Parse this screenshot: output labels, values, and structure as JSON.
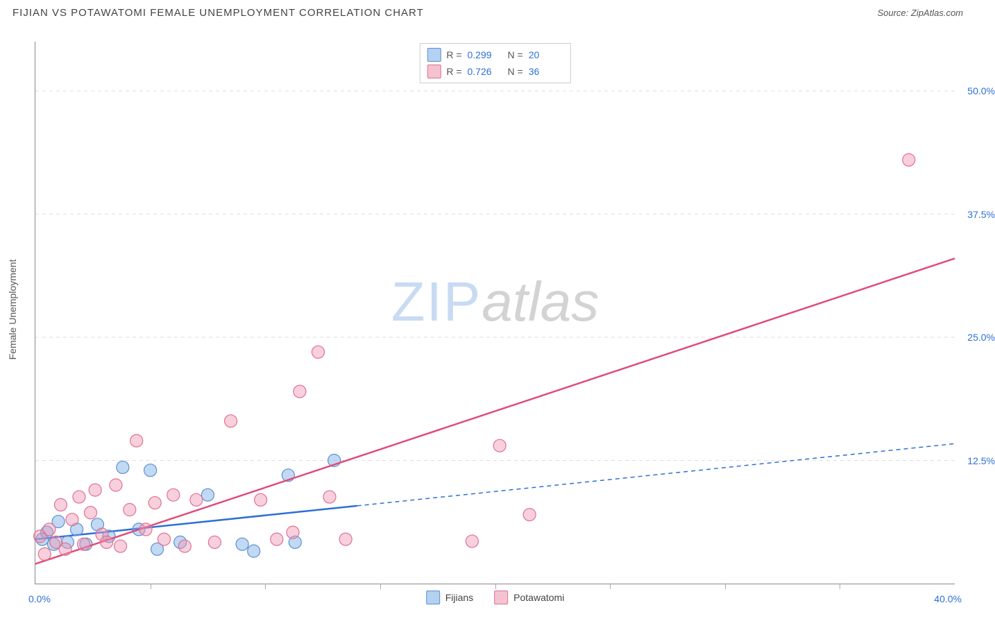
{
  "title": "FIJIAN VS POTAWATOMI FEMALE UNEMPLOYMENT CORRELATION CHART",
  "source_label": "Source: ZipAtlas.com",
  "y_axis_label": "Female Unemployment",
  "watermark": {
    "part1": "ZIP",
    "part2": "atlas"
  },
  "x_axis": {
    "min": 0,
    "max": 40,
    "min_label": "0.0%",
    "max_label": "40.0%",
    "tick_count": 8
  },
  "y_axis": {
    "min": 0,
    "max": 55,
    "gridlines": [
      12.5,
      25.0,
      37.5,
      50.0
    ],
    "grid_labels": [
      "12.5%",
      "25.0%",
      "37.5%",
      "50.0%"
    ]
  },
  "series": [
    {
      "name": "Fijians",
      "fill": "rgba(120,170,230,0.45)",
      "stroke": "#5a8fd0",
      "line_color": "#2c6fd6",
      "line_dash_after_x": 14,
      "R": "0.299",
      "N": "20",
      "regression": {
        "x1": 0,
        "y1": 4.5,
        "x2": 40,
        "y2": 14.2
      },
      "points": [
        [
          0.3,
          4.5
        ],
        [
          0.5,
          5.2
        ],
        [
          0.8,
          4.0
        ],
        [
          1.0,
          6.3
        ],
        [
          1.4,
          4.2
        ],
        [
          1.8,
          5.5
        ],
        [
          2.2,
          4.0
        ],
        [
          2.7,
          6.0
        ],
        [
          3.2,
          4.8
        ],
        [
          3.8,
          11.8
        ],
        [
          4.5,
          5.5
        ],
        [
          5.0,
          11.5
        ],
        [
          5.3,
          3.5
        ],
        [
          6.3,
          4.2
        ],
        [
          7.5,
          9.0
        ],
        [
          9.0,
          4.0
        ],
        [
          9.5,
          3.3
        ],
        [
          11.0,
          11.0
        ],
        [
          11.3,
          4.2
        ],
        [
          13.0,
          12.5
        ]
      ]
    },
    {
      "name": "Potawatomi",
      "fill": "rgba(240,150,180,0.45)",
      "stroke": "#e0708f",
      "line_color": "#e14b7a",
      "line_dash_after_x": 40,
      "R": "0.726",
      "N": "36",
      "regression": {
        "x1": 0,
        "y1": 2.0,
        "x2": 40,
        "y2": 33.0
      },
      "points": [
        [
          0.2,
          4.8
        ],
        [
          0.4,
          3.0
        ],
        [
          0.6,
          5.5
        ],
        [
          0.9,
          4.2
        ],
        [
          1.1,
          8.0
        ],
        [
          1.3,
          3.5
        ],
        [
          1.6,
          6.5
        ],
        [
          1.9,
          8.8
        ],
        [
          2.1,
          4.0
        ],
        [
          2.4,
          7.2
        ],
        [
          2.6,
          9.5
        ],
        [
          2.9,
          5.0
        ],
        [
          3.1,
          4.2
        ],
        [
          3.5,
          10.0
        ],
        [
          3.7,
          3.8
        ],
        [
          4.1,
          7.5
        ],
        [
          4.4,
          14.5
        ],
        [
          4.8,
          5.5
        ],
        [
          5.2,
          8.2
        ],
        [
          5.6,
          4.5
        ],
        [
          6.0,
          9.0
        ],
        [
          6.5,
          3.8
        ],
        [
          7.0,
          8.5
        ],
        [
          7.8,
          4.2
        ],
        [
          8.5,
          16.5
        ],
        [
          9.8,
          8.5
        ],
        [
          10.5,
          4.5
        ],
        [
          11.2,
          5.2
        ],
        [
          11.5,
          19.5
        ],
        [
          12.3,
          23.5
        ],
        [
          12.8,
          8.8
        ],
        [
          13.5,
          4.5
        ],
        [
          19.0,
          4.3
        ],
        [
          20.2,
          14.0
        ],
        [
          21.5,
          7.0
        ],
        [
          38.0,
          43.0
        ]
      ]
    }
  ],
  "marker_radius": 9,
  "marker_stroke_width": 1.2,
  "regression_line_width": 2.5,
  "colors": {
    "title": "#444444",
    "axis_label": "#555555",
    "tick_value": "#2c6fd6",
    "grid": "#dddddd",
    "swatch_blue_fill": "#b3d1f0",
    "swatch_blue_stroke": "#5a8fd0",
    "swatch_pink_fill": "#f4c2d1",
    "swatch_pink_stroke": "#e0708f"
  }
}
